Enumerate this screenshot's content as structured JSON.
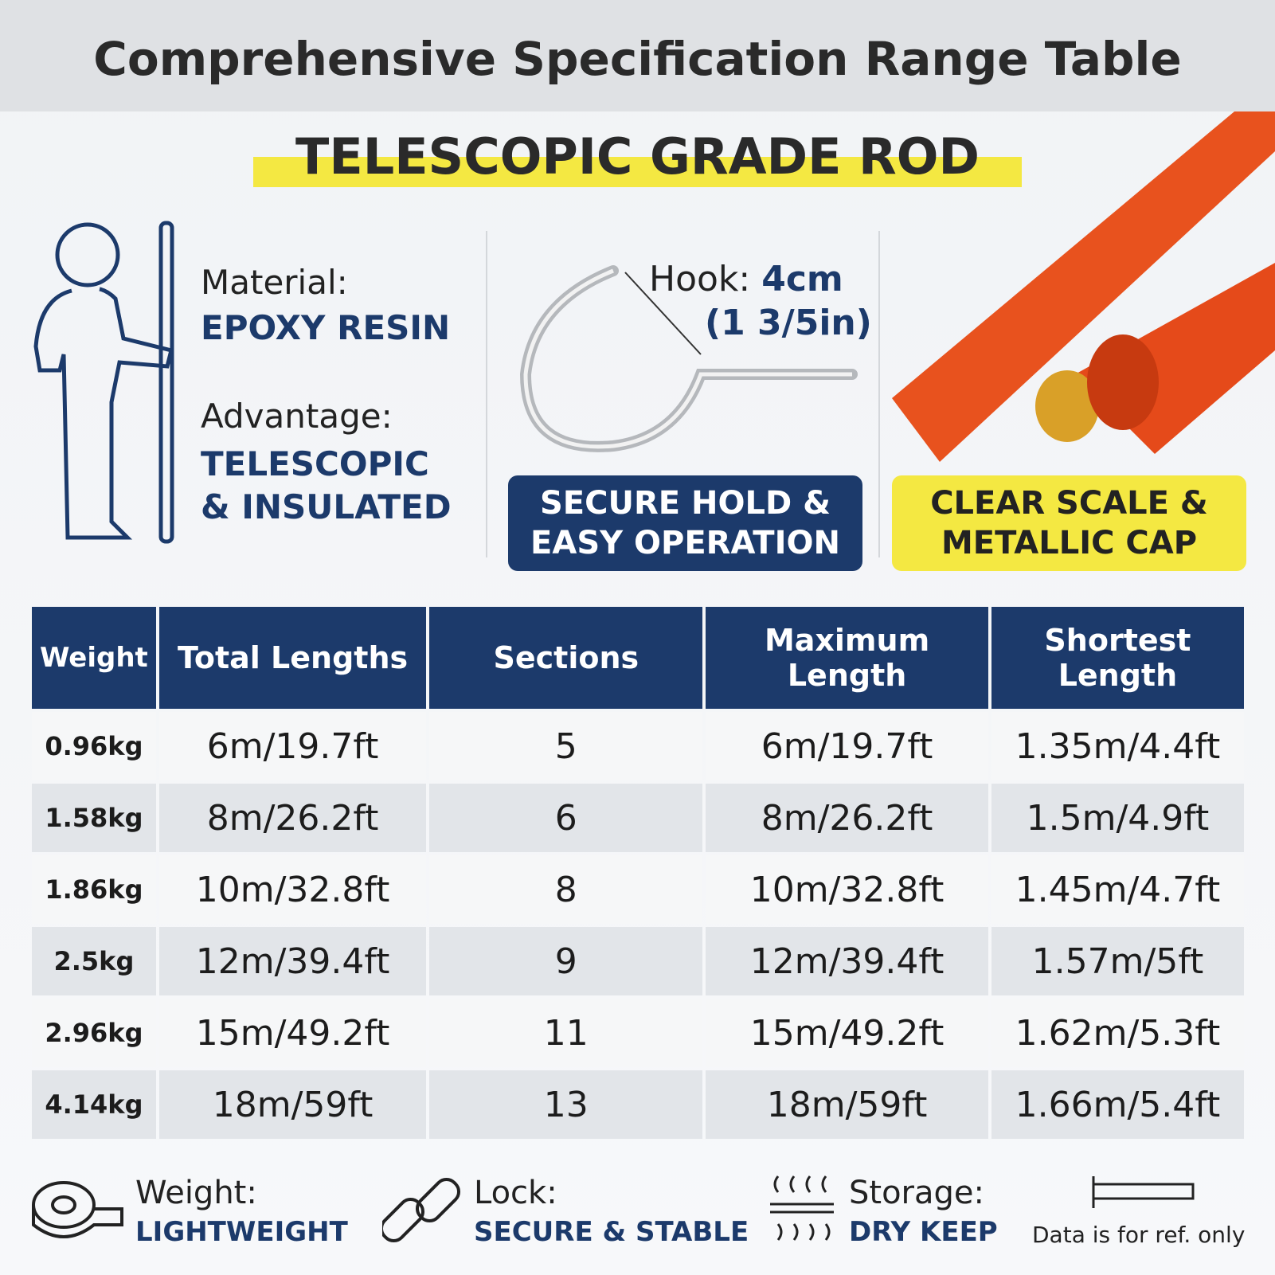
{
  "header": {
    "title": "Comprehensive Specification Range Table",
    "subtitle": "TELESCOPIC GRADE ROD"
  },
  "features": {
    "material": {
      "label": "Material:",
      "value": "EPOXY RESIN"
    },
    "advantage": {
      "label": "Advantage:",
      "value": [
        "TELESCOPIC",
        "& INSULATED"
      ]
    },
    "hook": {
      "label": "Hook:",
      "value": "4cm",
      "note": "(1 3/5in)"
    },
    "badges": [
      [
        "SECURE HOLD &",
        "EASY OPERATION"
      ],
      [
        "CLEAR SCALE &",
        "METALLIC CAP"
      ]
    ]
  },
  "table": {
    "columns": [
      "Weight",
      "Total Lengths",
      "Sections",
      "Maximum Length",
      "Shortest Length"
    ],
    "rows": [
      [
        "0.96kg",
        "6m/19.7ft",
        5,
        "6m/19.7ft",
        "1.35m/4.4ft"
      ],
      [
        "1.58kg",
        "8m/26.2ft",
        6,
        "8m/26.2ft",
        "1.5m/4.9ft"
      ],
      [
        "1.86kg",
        "10m/32.8ft",
        8,
        "10m/32.8ft",
        "1.45m/4.7ft"
      ],
      [
        "2.5kg",
        "12m/39.4ft",
        9,
        "12m/39.4ft",
        "1.57m/5ft"
      ],
      [
        "2.96kg",
        "15m/49.2ft",
        11,
        "15m/49.2ft",
        "1.62m/5.3ft"
      ],
      [
        "4.14kg",
        "18m/59ft",
        13,
        "18m/59ft",
        "1.66m/5.4ft"
      ]
    ]
  },
  "footer": {
    "items": [
      {
        "label": "Weight:",
        "value": "LIGHTWEIGHT"
      },
      {
        "label": "Lock:",
        "value": "SECURE & STABLE"
      },
      {
        "label": "Storage:",
        "value": "DRY KEEP"
      }
    ],
    "note": "Data is for ref. only"
  }
}
